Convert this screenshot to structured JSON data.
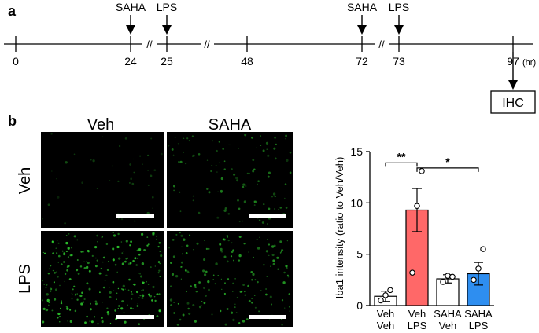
{
  "panel_a": {
    "label": "a",
    "timepoints": [
      {
        "label": "0"
      },
      {
        "label": "24"
      },
      {
        "label": "25"
      },
      {
        "label": "48"
      },
      {
        "label": "72"
      },
      {
        "label": "73"
      },
      {
        "label": "97"
      }
    ],
    "unit": "(hr)",
    "breaks": [
      "//",
      "//",
      "//"
    ],
    "events": [
      "SAHA",
      "LPS",
      "SAHA",
      "LPS"
    ],
    "endpoint": "IHC"
  },
  "panel_b": {
    "label": "b",
    "column_labels": [
      "Veh",
      "SAHA"
    ],
    "row_labels": [
      "Veh",
      "LPS"
    ],
    "micrograph_color": "#33dd33"
  },
  "chart_data": {
    "type": "bar",
    "ylabel": "Iba1 intensity (ratio to Veh/Veh)",
    "ylim": [
      0,
      15
    ],
    "yticks": [
      "0",
      "5",
      "10",
      "15"
    ],
    "categories": [
      {
        "top": "Veh",
        "bottom": "Veh"
      },
      {
        "top": "Veh",
        "bottom": "LPS"
      },
      {
        "top": "SAHA",
        "bottom": "Veh"
      },
      {
        "top": "SAHA",
        "bottom": "LPS"
      }
    ],
    "values": [
      0.9,
      9.3,
      2.6,
      3.1
    ],
    "errors": [
      0.5,
      2.1,
      0.4,
      1.1
    ],
    "points": [
      [
        0.5,
        1.0,
        1.5
      ],
      [
        3.2,
        9.7,
        13.1
      ],
      [
        2.3,
        2.9,
        2.8
      ],
      [
        2.5,
        3.6,
        5.5
      ]
    ],
    "colors": [
      "#ffffff",
      "#ff6868",
      "#ffffff",
      "#2e8ef0"
    ],
    "significance": [
      {
        "from": 0,
        "to": 1,
        "label": "**"
      },
      {
        "from": 1,
        "to": 3,
        "label": "*"
      }
    ]
  }
}
